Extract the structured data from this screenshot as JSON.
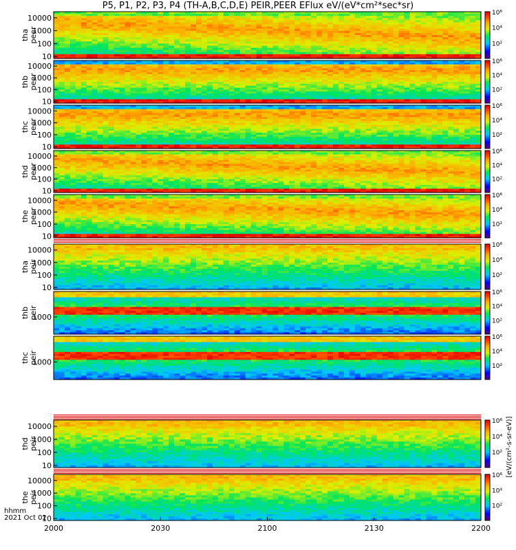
{
  "title": "P5, P1, P2, P3, P4 (TH-A,B,C,D,E) PEIR,PEER EFlux eV/(eV*cm²*sec*sr)",
  "colors": {
    "frame": "#000000",
    "background": "#ffffff"
  },
  "chart_data": {
    "type": "heatmap",
    "x_axis": {
      "label": "hhmm",
      "date": "2021 Oct 02",
      "range": [
        "2000",
        "2200"
      ],
      "ticks": [
        "2000",
        "2030",
        "2100",
        "2130",
        "2200"
      ]
    },
    "colorbar": {
      "scale": "log",
      "range": [
        1,
        1000000
      ],
      "tick_labels": [
        "10²",
        "10⁴",
        "10⁶"
      ],
      "unit_label": "[eV/(cm²-s-sr-eV)]"
    },
    "panels": [
      {
        "ylabel_top": "tha",
        "ylabel_bottom": "peer",
        "ylog": true,
        "yticks": [
          "10",
          "100",
          "1000",
          "10000"
        ],
        "ylim": [
          7,
          30000
        ]
      },
      {
        "ylabel_top": "thb",
        "ylabel_bottom": "peer",
        "ylog": true,
        "yticks": [
          "10",
          "100",
          "1000",
          "10000"
        ],
        "ylim": [
          7,
          30000
        ]
      },
      {
        "ylabel_top": "thc",
        "ylabel_bottom": "peer",
        "ylog": true,
        "yticks": [
          "10",
          "100",
          "1000",
          "10000"
        ],
        "ylim": [
          7,
          30000
        ]
      },
      {
        "ylabel_top": "thd",
        "ylabel_bottom": "peer",
        "ylog": true,
        "yticks": [
          "10",
          "100",
          "1000",
          "10000"
        ],
        "ylim": [
          7,
          30000
        ]
      },
      {
        "ylabel_top": "the",
        "ylabel_bottom": "peer",
        "ylog": true,
        "yticks": [
          "10",
          "100",
          "1000",
          "10000"
        ],
        "ylim": [
          7,
          30000
        ]
      },
      {
        "ylabel_top": "tha",
        "ylabel_bottom": "peir",
        "ylog": true,
        "yticks": [
          "10",
          "100",
          "1000",
          "10000"
        ],
        "ylim": [
          7,
          30000
        ]
      },
      {
        "ylabel_top": "thb",
        "ylabel_bottom": "peir",
        "ylog": true,
        "yticks": [
          "1000"
        ],
        "ylim": [
          100,
          30000
        ]
      },
      {
        "ylabel_top": "thc",
        "ylabel_bottom": "peir",
        "ylog": true,
        "yticks": [
          "1000"
        ],
        "ylim": [
          100,
          30000
        ]
      },
      {
        "ylabel_top": "thd",
        "ylabel_bottom": "peir",
        "ylog": true,
        "yticks": [
          "10",
          "100",
          "1000",
          "10000"
        ],
        "ylim": [
          7,
          30000
        ]
      },
      {
        "ylabel_top": "the",
        "ylabel_bottom": "peir",
        "ylog": true,
        "yticks": [
          "10",
          "100",
          "1000",
          "10000"
        ],
        "ylim": [
          7,
          30000
        ]
      }
    ]
  }
}
